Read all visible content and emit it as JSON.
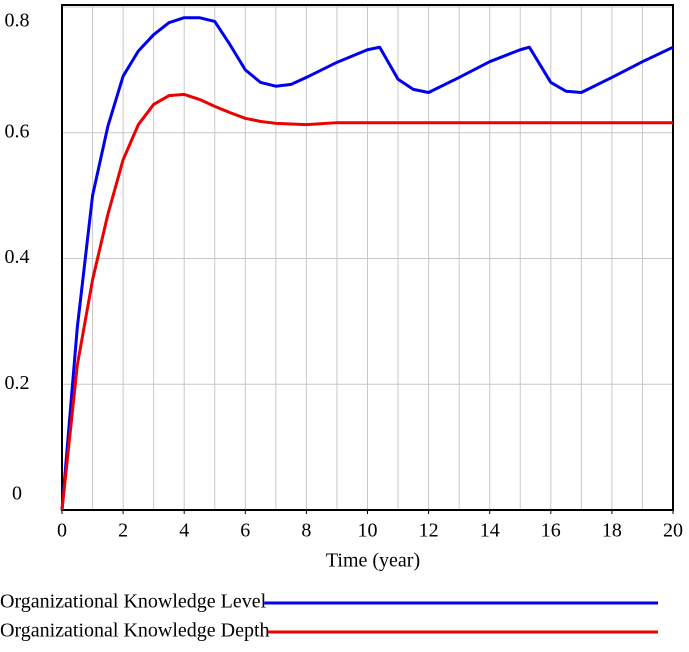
{
  "chart_data": {
    "type": "line",
    "x_label": "Time (year)",
    "x": [
      0,
      0.5,
      1,
      1.5,
      2,
      2.5,
      3,
      3.5,
      4,
      4.5,
      5,
      5.5,
      6,
      6.5,
      7,
      7.5,
      8,
      9,
      10,
      10.4,
      11,
      11.5,
      12,
      13,
      14,
      15,
      15.3,
      16,
      16.5,
      17,
      18,
      19,
      20
    ],
    "series": [
      {
        "name": "Organizational Knowledge Level",
        "color": "#0000ee",
        "values": [
          0,
          0.29,
          0.5,
          0.61,
          0.69,
          0.73,
          0.756,
          0.775,
          0.783,
          0.783,
          0.777,
          0.74,
          0.7,
          0.68,
          0.674,
          0.677,
          0.688,
          0.712,
          0.732,
          0.736,
          0.685,
          0.669,
          0.664,
          0.688,
          0.713,
          0.732,
          0.736,
          0.68,
          0.666,
          0.664,
          0.688,
          0.713,
          0.736
        ]
      },
      {
        "name": "Organizational Knowledge Depth",
        "color": "#ee0000",
        "values": [
          0,
          0.23,
          0.366,
          0.47,
          0.557,
          0.613,
          0.645,
          0.659,
          0.661,
          0.653,
          0.642,
          0.632,
          0.623,
          0.618,
          0.615,
          0.614,
          0.613,
          0.616,
          0.616,
          0.616,
          0.616,
          0.616,
          0.616,
          0.616,
          0.616,
          0.616,
          0.616,
          0.616,
          0.616,
          0.616,
          0.616,
          0.616,
          0.616
        ]
      }
    ],
    "xlim": [
      0,
      20
    ],
    "xticks": [
      0,
      2,
      4,
      6,
      8,
      10,
      12,
      14,
      16,
      18,
      20
    ],
    "ylim": [
      0,
      0.8
    ],
    "yticks": [
      0,
      0.2,
      0.4,
      0.6,
      0.8
    ],
    "grid": true
  }
}
